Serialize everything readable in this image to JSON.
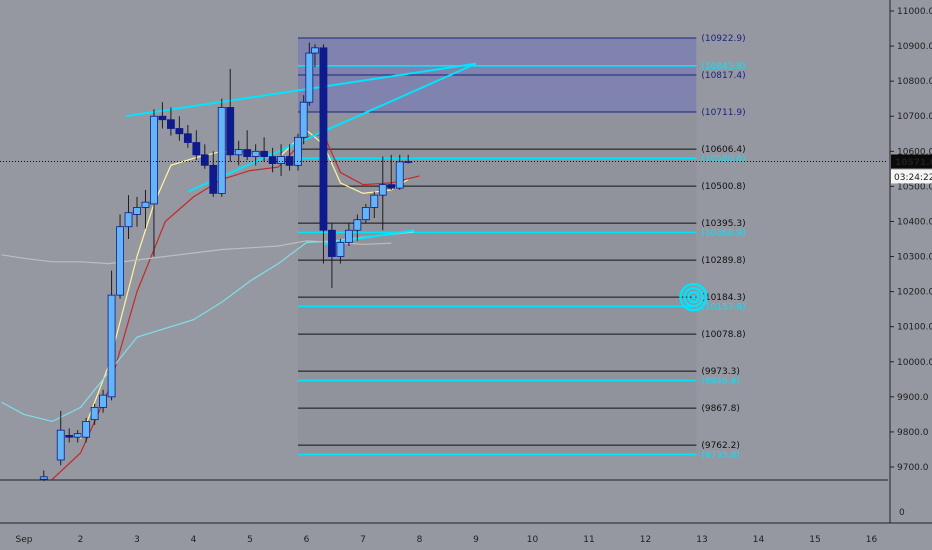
{
  "chart_data": {
    "type": "candlestick",
    "symbol": "",
    "price_axis": {
      "ticks": [
        11000,
        10900,
        10800,
        10700,
        10600,
        10500,
        10400,
        10300,
        10200,
        10100,
        10000,
        9900,
        9800,
        9700
      ],
      "tick_labels": [
        "11000.0",
        "10900.0",
        "10800.0",
        "10700.0",
        "10600.0",
        "10500.0",
        "10400.0",
        "10300.0",
        "10200.0",
        "10100.0",
        "10000.0",
        "9900.0",
        "9800.0",
        "9700.0"
      ],
      "range": [
        9665,
        11030
      ],
      "last_price_label": "10571.0",
      "countdown_label": "03:24:22",
      "lower_pane_tick": "0"
    },
    "time_axis": {
      "labels": [
        "Sep",
        "2",
        "3",
        "4",
        "5",
        "6",
        "7",
        "8",
        "9",
        "10",
        "11",
        "12",
        "13",
        "14",
        "15",
        "16"
      ],
      "positions": [
        1,
        2,
        3,
        4,
        5,
        6,
        7,
        8,
        9,
        10,
        11,
        12,
        13,
        14,
        15,
        16
      ]
    },
    "candles": [
      {
        "t": 1.35,
        "o": 9665,
        "h": 9690,
        "l": 9660,
        "c": 9672
      },
      {
        "t": 1.65,
        "o": 9720,
        "h": 9860,
        "l": 9705,
        "c": 9805
      },
      {
        "t": 1.8,
        "o": 9790,
        "h": 9810,
        "l": 9770,
        "c": 9785
      },
      {
        "t": 1.95,
        "o": 9785,
        "h": 9805,
        "l": 9770,
        "c": 9795
      },
      {
        "t": 2.1,
        "o": 9785,
        "h": 9840,
        "l": 9770,
        "c": 9830
      },
      {
        "t": 2.25,
        "o": 9835,
        "h": 9880,
        "l": 9820,
        "c": 9870
      },
      {
        "t": 2.4,
        "o": 9870,
        "h": 9920,
        "l": 9855,
        "c": 9905
      },
      {
        "t": 2.55,
        "o": 9900,
        "h": 10260,
        "l": 9890,
        "c": 10190
      },
      {
        "t": 2.7,
        "o": 10190,
        "h": 10420,
        "l": 10180,
        "c": 10385
      },
      {
        "t": 2.85,
        "o": 10385,
        "h": 10475,
        "l": 10350,
        "c": 10425
      },
      {
        "t": 3.0,
        "o": 10420,
        "h": 10470,
        "l": 10385,
        "c": 10440
      },
      {
        "t": 3.15,
        "o": 10440,
        "h": 10490,
        "l": 10380,
        "c": 10455
      },
      {
        "t": 3.3,
        "o": 10450,
        "h": 10720,
        "l": 10300,
        "c": 10700
      },
      {
        "t": 3.45,
        "o": 10700,
        "h": 10740,
        "l": 10665,
        "c": 10690
      },
      {
        "t": 3.6,
        "o": 10690,
        "h": 10725,
        "l": 10645,
        "c": 10665
      },
      {
        "t": 3.75,
        "o": 10665,
        "h": 10700,
        "l": 10630,
        "c": 10650
      },
      {
        "t": 3.9,
        "o": 10650,
        "h": 10675,
        "l": 10610,
        "c": 10625
      },
      {
        "t": 4.05,
        "o": 10625,
        "h": 10660,
        "l": 10575,
        "c": 10590
      },
      {
        "t": 4.2,
        "o": 10590,
        "h": 10620,
        "l": 10550,
        "c": 10560
      },
      {
        "t": 4.35,
        "o": 10560,
        "h": 10600,
        "l": 10470,
        "c": 10480
      },
      {
        "t": 4.5,
        "o": 10480,
        "h": 10750,
        "l": 10470,
        "c": 10725
      },
      {
        "t": 4.65,
        "o": 10725,
        "h": 10835,
        "l": 10570,
        "c": 10590
      },
      {
        "t": 4.8,
        "o": 10590,
        "h": 10630,
        "l": 10560,
        "c": 10605
      },
      {
        "t": 4.95,
        "o": 10605,
        "h": 10660,
        "l": 10575,
        "c": 10585
      },
      {
        "t": 5.1,
        "o": 10585,
        "h": 10620,
        "l": 10560,
        "c": 10600
      },
      {
        "t": 5.25,
        "o": 10600,
        "h": 10640,
        "l": 10570,
        "c": 10585
      },
      {
        "t": 5.4,
        "o": 10585,
        "h": 10610,
        "l": 10540,
        "c": 10565
      },
      {
        "t": 5.55,
        "o": 10565,
        "h": 10620,
        "l": 10530,
        "c": 10585
      },
      {
        "t": 5.7,
        "o": 10585,
        "h": 10620,
        "l": 10545,
        "c": 10560
      },
      {
        "t": 5.85,
        "o": 10560,
        "h": 10650,
        "l": 10545,
        "c": 10640
      },
      {
        "t": 5.95,
        "o": 10640,
        "h": 10760,
        "l": 10620,
        "c": 10740
      },
      {
        "t": 6.05,
        "o": 10740,
        "h": 10910,
        "l": 10730,
        "c": 10880
      },
      {
        "t": 6.15,
        "o": 10880,
        "h": 10905,
        "l": 10840,
        "c": 10895
      },
      {
        "t": 6.3,
        "o": 10895,
        "h": 10905,
        "l": 10280,
        "c": 10375
      },
      {
        "t": 6.45,
        "o": 10375,
        "h": 10395,
        "l": 10210,
        "c": 10300
      },
      {
        "t": 6.6,
        "o": 10300,
        "h": 10350,
        "l": 10280,
        "c": 10340
      },
      {
        "t": 6.75,
        "o": 10340,
        "h": 10395,
        "l": 10330,
        "c": 10375
      },
      {
        "t": 6.9,
        "o": 10375,
        "h": 10420,
        "l": 10345,
        "c": 10405
      },
      {
        "t": 7.05,
        "o": 10405,
        "h": 10450,
        "l": 10395,
        "c": 10440
      },
      {
        "t": 7.2,
        "o": 10440,
        "h": 10485,
        "l": 10410,
        "c": 10475
      },
      {
        "t": 7.35,
        "o": 10475,
        "h": 10585,
        "l": 10375,
        "c": 10505
      },
      {
        "t": 7.5,
        "o": 10505,
        "h": 10590,
        "l": 10490,
        "c": 10495
      },
      {
        "t": 7.65,
        "o": 10495,
        "h": 10590,
        "l": 10490,
        "c": 10570
      },
      {
        "t": 7.8,
        "o": 10570,
        "h": 10590,
        "l": 10565,
        "c": 10571
      }
    ],
    "fib_levels": [
      {
        "value": 10922.9,
        "label": "(10922.9)",
        "color": "#1a237e"
      },
      {
        "value": 10843.8,
        "label": "(10843.8)",
        "color": "#00e5ff"
      },
      {
        "value": 10817.4,
        "label": "(10817.4)",
        "color": "#1a237e"
      },
      {
        "value": 10711.9,
        "label": "(10711.9)",
        "color": "#1a237e"
      },
      {
        "value": 10606.4,
        "label": "(10606.4)",
        "color": "#111111"
      },
      {
        "value": 10580.0,
        "label": "(10580.0)",
        "color": "#00e5ff"
      },
      {
        "value": 10500.8,
        "label": "(10500.8)",
        "color": "#111111"
      },
      {
        "value": 10395.3,
        "label": "(10395.3)",
        "color": "#111111"
      },
      {
        "value": 10368.9,
        "label": "(10368.9)",
        "color": "#00e5ff"
      },
      {
        "value": 10289.8,
        "label": "(10289.8)",
        "color": "#111111"
      },
      {
        "value": 10184.3,
        "label": "(10184.3)",
        "color": "#111111"
      },
      {
        "value": 10157.9,
        "label": "(10157.9)",
        "color": "#00e5ff"
      },
      {
        "value": 10078.8,
        "label": "(10078.8)",
        "color": "#111111"
      },
      {
        "value": 9973.3,
        "label": "(9973.3)",
        "color": "#111111"
      },
      {
        "value": 9946.9,
        "label": "(9946.9)",
        "color": "#00e5ff"
      },
      {
        "value": 9867.8,
        "label": "(9867.8)",
        "color": "#111111"
      },
      {
        "value": 9762.2,
        "label": "(9762.2)",
        "color": "#111111"
      },
      {
        "value": 9735.8,
        "label": "(9735.8)",
        "color": "#00e5ff"
      }
    ],
    "fib_range": {
      "t_start": 5.85,
      "t_end": 12.9
    },
    "indicators": [
      {
        "color": "#fff59d",
        "points": [
          [
            2.0,
            9780
          ],
          [
            2.5,
            9990
          ],
          [
            3.0,
            10300
          ],
          [
            3.3,
            10450
          ],
          [
            3.6,
            10560
          ],
          [
            4.0,
            10580
          ],
          [
            4.5,
            10600
          ],
          [
            5.0,
            10590
          ],
          [
            5.5,
            10580
          ],
          [
            6.0,
            10660
          ],
          [
            6.3,
            10620
          ],
          [
            6.6,
            10510
          ],
          [
            7.0,
            10480
          ],
          [
            7.5,
            10490
          ],
          [
            7.8,
            10520
          ]
        ]
      },
      {
        "color": "#c62828",
        "points": [
          [
            1.5,
            9665
          ],
          [
            2.0,
            9740
          ],
          [
            2.5,
            9920
          ],
          [
            3.0,
            10200
          ],
          [
            3.5,
            10400
          ],
          [
            4.0,
            10470
          ],
          [
            4.5,
            10520
          ],
          [
            5.0,
            10545
          ],
          [
            5.5,
            10555
          ],
          [
            6.0,
            10640
          ],
          [
            6.3,
            10650
          ],
          [
            6.6,
            10540
          ],
          [
            7.0,
            10505
          ],
          [
            7.5,
            10510
          ],
          [
            8.0,
            10530
          ]
        ]
      },
      {
        "color": "#80deea",
        "points": [
          [
            0.6,
            9885
          ],
          [
            1.0,
            9850
          ],
          [
            1.5,
            9830
          ],
          [
            2.0,
            9870
          ],
          [
            2.5,
            9970
          ],
          [
            3.0,
            10070
          ],
          [
            4.0,
            10120
          ],
          [
            4.5,
            10170
          ],
          [
            5.0,
            10230
          ],
          [
            5.5,
            10280
          ],
          [
            6.0,
            10340
          ],
          [
            6.5,
            10345
          ],
          [
            7.0,
            10355
          ],
          [
            7.9,
            10370
          ]
        ]
      },
      {
        "color": "#bdbdbd",
        "points": [
          [
            0.6,
            10305
          ],
          [
            1.0,
            10295
          ],
          [
            1.5,
            10285
          ],
          [
            2.0,
            10285
          ],
          [
            2.5,
            10280
          ],
          [
            3.0,
            10290
          ],
          [
            4.0,
            10310
          ],
          [
            4.5,
            10320
          ],
          [
            5.0,
            10325
          ],
          [
            5.5,
            10330
          ],
          [
            6.0,
            10345
          ],
          [
            6.5,
            10340
          ],
          [
            7.0,
            10335
          ],
          [
            7.5,
            10338
          ]
        ]
      }
    ],
    "trendlines": [
      {
        "color": "#00e5ff",
        "t1": 2.8,
        "p1": 10700,
        "t2": 9.0,
        "p2": 10850
      },
      {
        "color": "#00e5ff",
        "t1": 3.9,
        "p1": 10485,
        "t2": 9.0,
        "p2": 10850
      },
      {
        "color": "#00e5ff",
        "t1": 6.3,
        "p1": 10335,
        "t2": 7.9,
        "p2": 10375
      }
    ],
    "target_marker": {
      "t": 12.85,
      "p": 10184.3,
      "color": "#00e5ff"
    },
    "colors": {
      "background": "#9598a1",
      "up_candle": "#64b5f6",
      "down_candle": "#0d1b8c",
      "fib_zone": "#7b7fb0"
    }
  }
}
